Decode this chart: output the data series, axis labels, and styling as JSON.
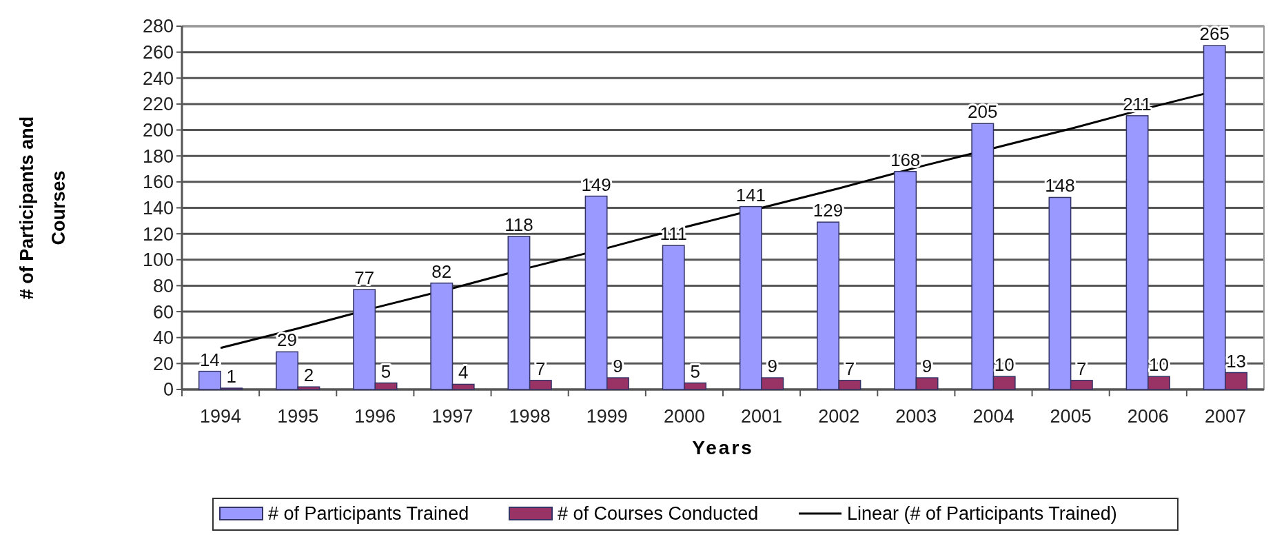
{
  "chart_data": {
    "type": "bar",
    "xlabel": "Years",
    "ylabel": "# of Participants and Courses",
    "categories": [
      "1994",
      "1995",
      "1996",
      "1997",
      "1998",
      "1999",
      "2000",
      "2001",
      "2002",
      "2003",
      "2004",
      "2005",
      "2006",
      "2007"
    ],
    "series": [
      {
        "name": "# of Participants Trained",
        "color": "#9999ff",
        "values": [
          14,
          29,
          77,
          82,
          118,
          149,
          111,
          141,
          129,
          168,
          205,
          148,
          211,
          265
        ],
        "value_labels": [
          "14",
          "29",
          "77",
          "82",
          "118",
          "149",
          "111",
          "141",
          "129",
          "168",
          "205",
          "148",
          "211",
          "265"
        ]
      },
      {
        "name": "# of Courses Conducted",
        "color": "#993366",
        "values": [
          1,
          2,
          5,
          4,
          7,
          9,
          5,
          9,
          7,
          9,
          10,
          7,
          10,
          13
        ],
        "value_labels": [
          "1",
          "2",
          "5",
          "4",
          "7",
          "9",
          "5",
          "9",
          "7",
          "9",
          "10",
          "7",
          "10",
          "13"
        ]
      },
      {
        "name": "Linear (# of Participants Trained)",
        "type": "line",
        "color": "#000000",
        "values": [
          32,
          47,
          63,
          78,
          94,
          109,
          125,
          140,
          155,
          171,
          186,
          201,
          217,
          232
        ]
      }
    ],
    "ylim": [
      0,
      280
    ],
    "yticks": [
      0,
      20,
      40,
      60,
      80,
      100,
      120,
      140,
      160,
      180,
      200,
      220,
      240,
      260,
      280
    ],
    "grid": "y",
    "legend": "bottom"
  }
}
